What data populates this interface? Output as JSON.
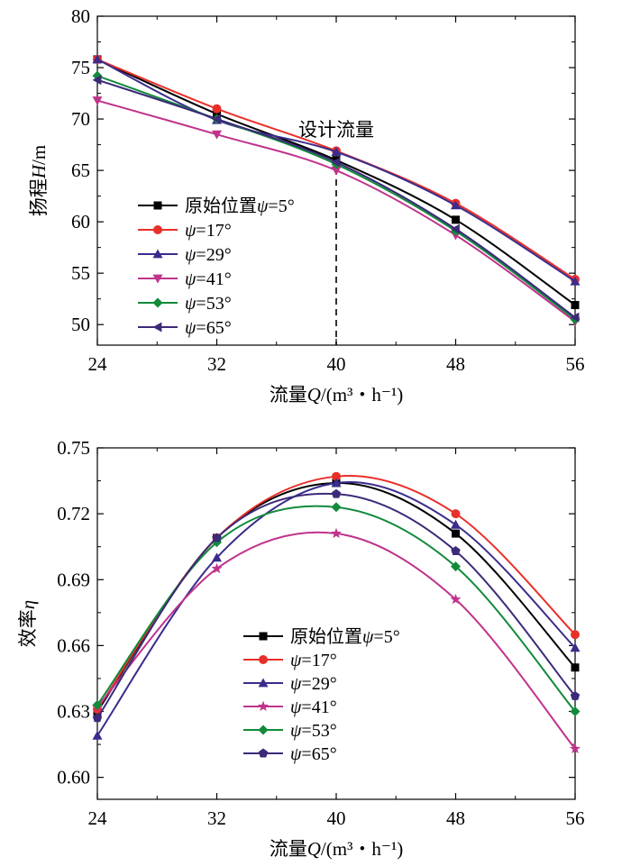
{
  "chart_data": [
    {
      "type": "line",
      "xlabel": {
        "prefix": "流量",
        "var": "Q",
        "unit": "/(m³・h⁻¹)"
      },
      "ylabel": {
        "prefix": "扬程",
        "var": "H",
        "unit": "/m"
      },
      "x": [
        24,
        32,
        40,
        48,
        56
      ],
      "xlim": [
        24,
        56
      ],
      "xticks": [
        "24",
        "32",
        "40",
        "48",
        "56"
      ],
      "ylim": [
        48,
        80
      ],
      "yticks": [
        "50",
        "55",
        "60",
        "65",
        "70",
        "75",
        "80"
      ],
      "annotation": {
        "text": "设计流量",
        "x": 40
      },
      "legend_position": "center-left",
      "series": [
        {
          "name": "原始位置ψ=5°",
          "color": "#000000",
          "marker": "square",
          "values": [
            75.8,
            70.5,
            66.0,
            60.2,
            51.9
          ]
        },
        {
          "name": "ψ=17°",
          "color": "#e8302a",
          "marker": "circle",
          "values": [
            75.8,
            71.0,
            66.9,
            61.8,
            54.4
          ]
        },
        {
          "name": "ψ=29°",
          "color": "#3a2c8c",
          "marker": "triangle-up",
          "values": [
            75.8,
            69.9,
            66.8,
            61.6,
            54.2
          ]
        },
        {
          "name": "ψ=41°",
          "color": "#c0338c",
          "marker": "triangle-down",
          "values": [
            71.8,
            68.5,
            65.0,
            58.7,
            50.3
          ]
        },
        {
          "name": "ψ=53°",
          "color": "#128a3a",
          "marker": "diamond",
          "values": [
            74.2,
            70.0,
            65.6,
            59.1,
            50.5
          ]
        },
        {
          "name": "ψ=65°",
          "color": "#3c2a78",
          "marker": "triangle-left",
          "values": [
            73.8,
            70.0,
            65.8,
            59.3,
            50.7
          ]
        }
      ]
    },
    {
      "type": "line",
      "xlabel": {
        "prefix": "流量",
        "var": "Q",
        "unit": "/(m³・h⁻¹)"
      },
      "ylabel": {
        "prefix": "效率",
        "var": "η",
        "unit": ""
      },
      "x": [
        24,
        32,
        40,
        48,
        56
      ],
      "xlim": [
        24,
        56
      ],
      "xticks": [
        "24",
        "32",
        "40",
        "48",
        "56"
      ],
      "ylim": [
        0.59,
        0.75
      ],
      "yticks": [
        "0.60",
        "0.63",
        "0.66",
        "0.69",
        "0.72",
        "0.75"
      ],
      "legend_position": "lower-right",
      "series": [
        {
          "name": "原始位置ψ=5°",
          "color": "#000000",
          "marker": "square",
          "values": [
            0.63,
            0.709,
            0.734,
            0.711,
            0.65
          ]
        },
        {
          "name": "ψ=17°",
          "color": "#e8302a",
          "marker": "circle",
          "values": [
            0.631,
            0.709,
            0.737,
            0.72,
            0.665
          ]
        },
        {
          "name": "ψ=29°",
          "color": "#3a2c8c",
          "marker": "triangle-up",
          "values": [
            0.619,
            0.7,
            0.734,
            0.715,
            0.659
          ]
        },
        {
          "name": "ψ=41°",
          "color": "#c0338c",
          "marker": "star",
          "values": [
            0.632,
            0.695,
            0.711,
            0.681,
            0.613
          ]
        },
        {
          "name": "ψ=53°",
          "color": "#128a3a",
          "marker": "diamond",
          "values": [
            0.633,
            0.707,
            0.723,
            0.696,
            0.63
          ]
        },
        {
          "name": "ψ=65°",
          "color": "#3c2a78",
          "marker": "pentagon",
          "values": [
            0.627,
            0.709,
            0.729,
            0.703,
            0.637
          ]
        }
      ]
    }
  ]
}
